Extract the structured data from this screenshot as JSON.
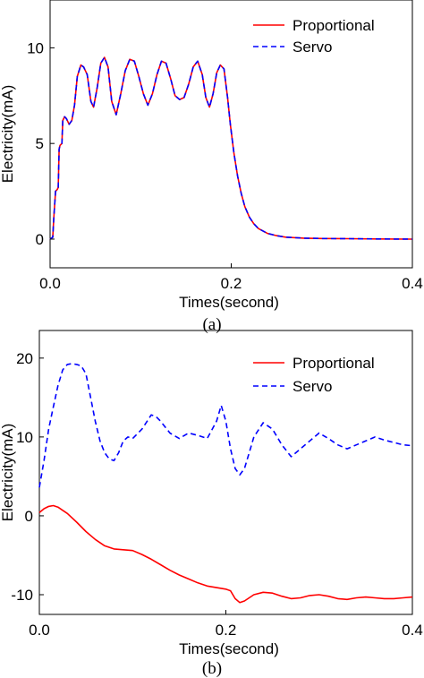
{
  "chart_data": [
    {
      "type": "line",
      "caption": "(a)",
      "xlabel": "Times(second)",
      "ylabel": "Electricity(mA)",
      "xlim": [
        0.0,
        0.4
      ],
      "ylim": [
        -1.5,
        12.5
      ],
      "xticks": [
        "0.0",
        "0.2",
        "0.4"
      ],
      "xtick_values": [
        0.0,
        0.2,
        0.4
      ],
      "yticks": [
        "0",
        "5",
        "10"
      ],
      "ytick_values": [
        0,
        5,
        10
      ],
      "grid": false,
      "legend": "top-right",
      "series": [
        {
          "name": "Proportional",
          "color": "#ff0000",
          "dash": "solid",
          "x": [
            0.0,
            0.003,
            0.004,
            0.006,
            0.008,
            0.009,
            0.01,
            0.011,
            0.013,
            0.014,
            0.016,
            0.018,
            0.021,
            0.024,
            0.027,
            0.03,
            0.034,
            0.037,
            0.041,
            0.045,
            0.048,
            0.052,
            0.056,
            0.06,
            0.064,
            0.068,
            0.073,
            0.078,
            0.083,
            0.088,
            0.093,
            0.098,
            0.103,
            0.108,
            0.113,
            0.118,
            0.123,
            0.128,
            0.133,
            0.138,
            0.143,
            0.148,
            0.153,
            0.158,
            0.163,
            0.168,
            0.172,
            0.176,
            0.18,
            0.184,
            0.188,
            0.192,
            0.196,
            0.199,
            0.203,
            0.207,
            0.211,
            0.215,
            0.22,
            0.225,
            0.23,
            0.24,
            0.25,
            0.26,
            0.28,
            0.3,
            0.33,
            0.36,
            0.4
          ],
          "y": [
            0.0,
            0.1,
            1.0,
            2.5,
            2.6,
            2.7,
            4.7,
            4.9,
            5.0,
            6.2,
            6.4,
            6.3,
            6.0,
            6.2,
            7.0,
            8.5,
            9.1,
            9.0,
            8.6,
            7.2,
            6.9,
            7.9,
            9.2,
            9.5,
            9.0,
            7.2,
            6.5,
            7.6,
            8.8,
            9.4,
            9.3,
            8.5,
            7.6,
            7.0,
            7.6,
            8.6,
            9.3,
            9.2,
            8.4,
            7.5,
            7.3,
            7.4,
            8.1,
            9.0,
            9.3,
            8.6,
            7.4,
            6.9,
            7.6,
            8.7,
            9.1,
            8.9,
            7.4,
            6.0,
            4.5,
            3.3,
            2.4,
            1.7,
            1.15,
            0.8,
            0.55,
            0.3,
            0.18,
            0.1,
            0.05,
            0.03,
            0.02,
            0.01,
            0.0
          ]
        },
        {
          "name": "Servo",
          "color": "#0000ff",
          "dash": "dashed",
          "x": [
            0.0,
            0.003,
            0.004,
            0.006,
            0.008,
            0.009,
            0.01,
            0.011,
            0.013,
            0.014,
            0.016,
            0.018,
            0.021,
            0.024,
            0.027,
            0.03,
            0.034,
            0.037,
            0.041,
            0.045,
            0.048,
            0.052,
            0.056,
            0.06,
            0.064,
            0.068,
            0.073,
            0.078,
            0.083,
            0.088,
            0.093,
            0.098,
            0.103,
            0.108,
            0.113,
            0.118,
            0.123,
            0.128,
            0.133,
            0.138,
            0.143,
            0.148,
            0.153,
            0.158,
            0.163,
            0.168,
            0.172,
            0.176,
            0.18,
            0.184,
            0.188,
            0.192,
            0.196,
            0.199,
            0.203,
            0.207,
            0.211,
            0.215,
            0.22,
            0.225,
            0.23,
            0.24,
            0.25,
            0.26,
            0.28,
            0.3,
            0.33,
            0.36,
            0.4
          ],
          "y": [
            0.0,
            0.1,
            1.0,
            2.5,
            2.6,
            2.7,
            4.7,
            4.9,
            5.0,
            6.2,
            6.4,
            6.3,
            6.0,
            6.2,
            7.0,
            8.5,
            9.1,
            9.0,
            8.6,
            7.2,
            6.9,
            7.9,
            9.2,
            9.5,
            9.0,
            7.2,
            6.5,
            7.6,
            8.8,
            9.4,
            9.3,
            8.5,
            7.6,
            7.0,
            7.6,
            8.6,
            9.3,
            9.2,
            8.4,
            7.5,
            7.3,
            7.4,
            8.1,
            9.0,
            9.3,
            8.6,
            7.4,
            6.9,
            7.6,
            8.7,
            9.1,
            8.9,
            7.4,
            6.0,
            4.5,
            3.3,
            2.4,
            1.7,
            1.15,
            0.8,
            0.55,
            0.3,
            0.18,
            0.1,
            0.05,
            0.03,
            0.02,
            0.01,
            0.0
          ]
        }
      ]
    },
    {
      "type": "line",
      "caption": "(b)",
      "xlabel": "Times(second)",
      "ylabel": "Electricity(mA)",
      "xlim": [
        0.0,
        0.4
      ],
      "ylim": [
        -12.5,
        23.5
      ],
      "xticks": [
        "0.0",
        "0.2",
        "0.4"
      ],
      "xtick_values": [
        0.0,
        0.2,
        0.4
      ],
      "yticks": [
        "-10",
        "0",
        "10",
        "20"
      ],
      "ytick_values": [
        -10,
        0,
        10,
        20
      ],
      "grid": false,
      "legend": "top-right",
      "series": [
        {
          "name": "Proportional",
          "color": "#ff0000",
          "dash": "solid",
          "x": [
            0.0,
            0.005,
            0.01,
            0.015,
            0.02,
            0.025,
            0.03,
            0.04,
            0.05,
            0.06,
            0.07,
            0.08,
            0.09,
            0.1,
            0.11,
            0.12,
            0.13,
            0.14,
            0.15,
            0.16,
            0.17,
            0.18,
            0.19,
            0.2,
            0.205,
            0.21,
            0.215,
            0.22,
            0.23,
            0.24,
            0.25,
            0.26,
            0.27,
            0.28,
            0.29,
            0.3,
            0.31,
            0.32,
            0.33,
            0.34,
            0.35,
            0.36,
            0.37,
            0.38,
            0.39,
            0.4
          ],
          "y": [
            0.4,
            0.9,
            1.2,
            1.3,
            1.1,
            0.7,
            0.3,
            -0.8,
            -2.0,
            -3.0,
            -3.8,
            -4.2,
            -4.3,
            -4.4,
            -4.9,
            -5.5,
            -6.2,
            -6.9,
            -7.5,
            -8.0,
            -8.5,
            -8.9,
            -9.1,
            -9.3,
            -9.5,
            -10.5,
            -11.0,
            -10.8,
            -10.0,
            -9.7,
            -9.8,
            -10.2,
            -10.5,
            -10.4,
            -10.1,
            -10.0,
            -10.2,
            -10.5,
            -10.6,
            -10.4,
            -10.3,
            -10.4,
            -10.5,
            -10.5,
            -10.4,
            -10.3
          ]
        },
        {
          "name": "Servo",
          "color": "#0000ff",
          "dash": "dashed",
          "x": [
            0.0,
            0.005,
            0.01,
            0.015,
            0.02,
            0.025,
            0.03,
            0.035,
            0.04,
            0.045,
            0.05,
            0.055,
            0.06,
            0.065,
            0.07,
            0.075,
            0.08,
            0.085,
            0.09,
            0.095,
            0.1,
            0.11,
            0.12,
            0.125,
            0.13,
            0.14,
            0.15,
            0.16,
            0.17,
            0.18,
            0.19,
            0.195,
            0.2,
            0.205,
            0.21,
            0.215,
            0.22,
            0.225,
            0.23,
            0.24,
            0.25,
            0.26,
            0.27,
            0.28,
            0.29,
            0.3,
            0.31,
            0.32,
            0.33,
            0.34,
            0.35,
            0.36,
            0.37,
            0.38,
            0.39,
            0.4
          ],
          "y": [
            3.6,
            7.0,
            11.0,
            13.8,
            16.5,
            18.5,
            19.2,
            19.3,
            19.2,
            19.0,
            18.0,
            15.0,
            12.0,
            9.5,
            8.0,
            7.2,
            7.0,
            8.0,
            9.5,
            10.0,
            9.8,
            11.0,
            12.8,
            12.6,
            12.0,
            10.5,
            9.8,
            10.5,
            10.2,
            9.8,
            12.0,
            14.0,
            12.0,
            8.5,
            6.0,
            5.2,
            6.0,
            8.0,
            10.0,
            11.8,
            11.0,
            9.0,
            7.5,
            8.5,
            9.5,
            10.5,
            9.8,
            9.0,
            8.5,
            9.0,
            9.5,
            10.0,
            9.6,
            9.3,
            9.0,
            8.9
          ]
        }
      ]
    }
  ]
}
